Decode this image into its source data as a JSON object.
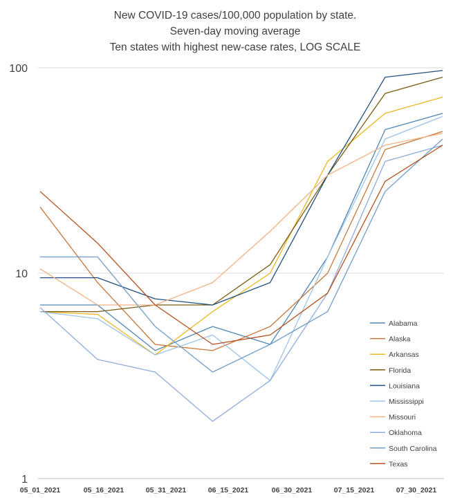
{
  "chart_data": {
    "type": "line",
    "title": [
      "New COVID-19 cases/100,000 population by state.",
      "Seven-day moving average",
      "Ten states with highest new-case rates, LOG SCALE"
    ],
    "xlabel": "",
    "ylabel": "",
    "y_scale": "log",
    "ylim": [
      1,
      100
    ],
    "yticks": [
      "1",
      "10",
      "100"
    ],
    "x_tick_labels": [
      "05_01_2021",
      "05_16_2021",
      "05_31_2021",
      "06_15_2021",
      "06_30_2021",
      "07_15_2021",
      "07_30_2021"
    ],
    "x": [
      "05_01_2021",
      "05_16_2021",
      "05_31_2021",
      "06_15_2021",
      "06_30_2021",
      "07_15_2021",
      "07_30_2021",
      "08_05_2021"
    ],
    "grid": true,
    "legend_position": "right",
    "series": [
      {
        "name": "Alabama",
        "color": "#4e86b8",
        "values": [
          7.0,
          7.0,
          4.2,
          5.5,
          4.5,
          12.0,
          50.0,
          60.0
        ]
      },
      {
        "name": "Alaska",
        "color": "#c8773a",
        "values": [
          21.0,
          9.0,
          4.5,
          4.2,
          5.5,
          10.0,
          40.0,
          49.0
        ]
      },
      {
        "name": "Arkansas",
        "color": "#e8b820",
        "values": [
          6.5,
          6.3,
          4.0,
          6.5,
          10.0,
          35.0,
          60.0,
          72.0
        ]
      },
      {
        "name": "Florida",
        "color": "#7a5a10",
        "values": [
          6.5,
          6.5,
          7.0,
          7.0,
          11.0,
          30.0,
          75.0,
          90.0
        ]
      },
      {
        "name": "Louisiana",
        "color": "#1e4f80",
        "values": [
          9.5,
          9.5,
          7.5,
          7.0,
          9.0,
          30.0,
          90.0,
          97.0
        ]
      },
      {
        "name": "Mississippi",
        "color": "#9dc3e6",
        "values": [
          6.5,
          6.0,
          4.0,
          5.0,
          3.0,
          12.0,
          45.0,
          58.0
        ]
      },
      {
        "name": "Missouri",
        "color": "#f4b183",
        "values": [
          10.5,
          7.0,
          7.0,
          9.0,
          16.0,
          30.0,
          42.0,
          48.0
        ]
      },
      {
        "name": "Oklahoma",
        "color": "#8eaadb",
        "values": [
          6.8,
          3.8,
          3.3,
          1.9,
          3.0,
          8.0,
          35.0,
          42.0
        ]
      },
      {
        "name": "South Carolina",
        "color": "#6f9dc8",
        "values": [
          12.0,
          12.0,
          5.5,
          3.3,
          4.5,
          6.5,
          25.0,
          45.0
        ]
      },
      {
        "name": "Texas",
        "color": "#b5511e",
        "values": [
          25.0,
          14.0,
          7.0,
          4.5,
          5.0,
          8.0,
          28.0,
          42.0
        ]
      }
    ]
  }
}
